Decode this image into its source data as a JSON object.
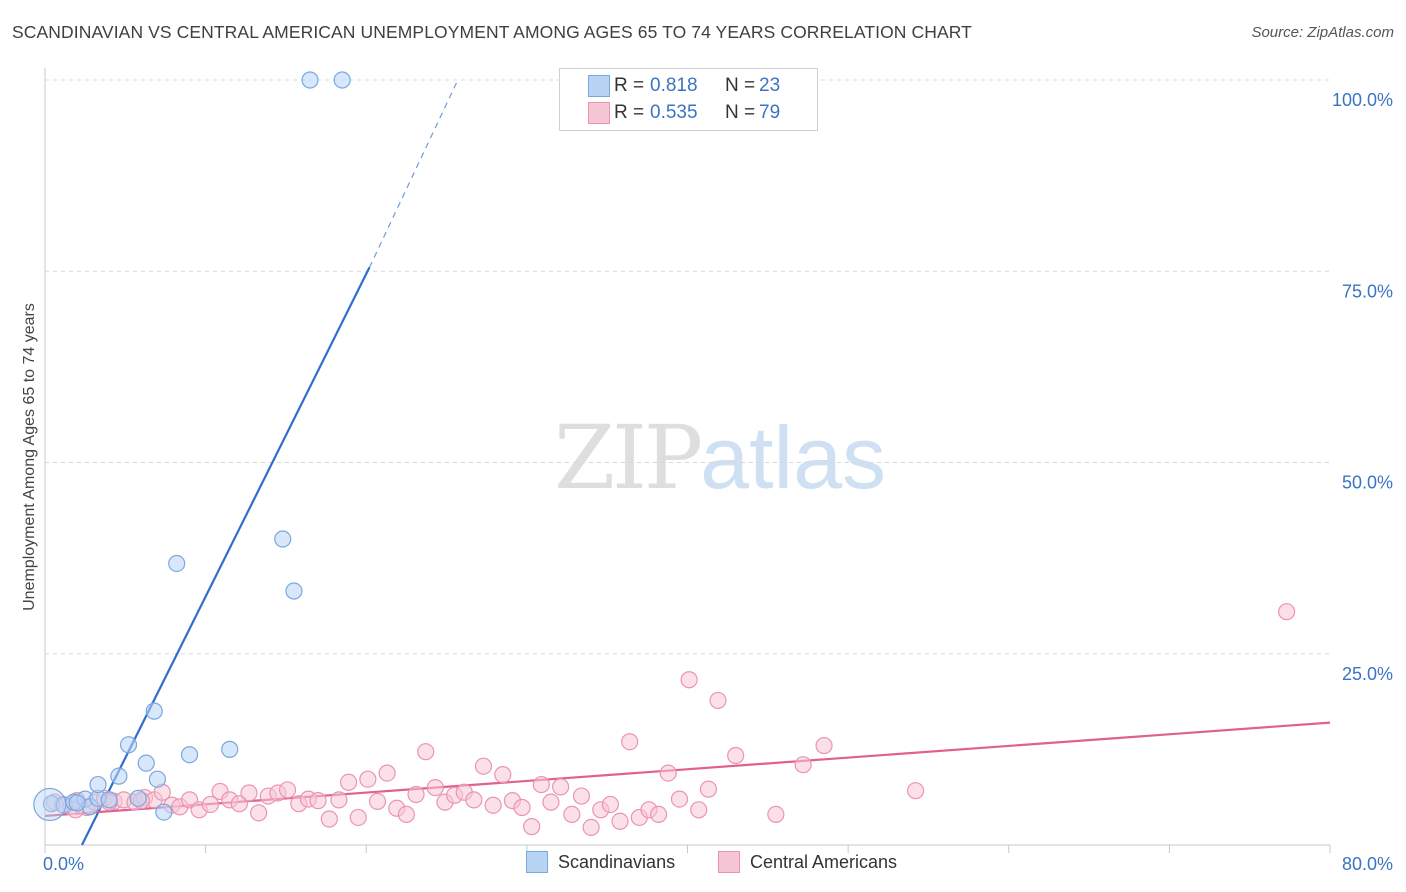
{
  "header": {
    "title": "SCANDINAVIAN VS CENTRAL AMERICAN UNEMPLOYMENT AMONG AGES 65 TO 74 YEARS CORRELATION CHART",
    "source": "Source: ZipAtlas.com"
  },
  "watermark": {
    "zip": "ZIP",
    "atlas": "atlas"
  },
  "legend_top": {
    "rows": [
      {
        "r_label": "R =",
        "r_value": "0.818",
        "n_label": "N =",
        "n_value": "23"
      },
      {
        "r_label": "R =",
        "r_value": "0.535",
        "n_label": "N =",
        "n_value": "79"
      }
    ]
  },
  "legend_bottom": [
    "Scandinavians",
    "Central Americans"
  ],
  "colors": {
    "blue_fill": "#b8d4f5",
    "blue_stroke": "#7aa7de",
    "blue_line": "#2f6fcb",
    "pink_fill": "#f7c6d6",
    "pink_stroke": "#eb94b1",
    "pink_line": "#e0608e",
    "tick_label": "#3b74c4",
    "grid": "#d8d8d8"
  },
  "chart_data": {
    "type": "scatter",
    "title": "SCANDINAVIAN VS CENTRAL AMERICAN UNEMPLOYMENT AMONG AGES 65 TO 74 YEARS CORRELATION CHART",
    "xlabel": "",
    "ylabel": "Unemployment Among Ages 65 to 74 years",
    "xlim": [
      0,
      80
    ],
    "ylim": [
      0,
      100
    ],
    "x_tick_labels": [
      "0.0%",
      "80.0%"
    ],
    "y_tick_values": [
      25,
      50,
      75,
      100
    ],
    "y_tick_labels": [
      "25.0%",
      "50.0%",
      "75.0%",
      "100.0%"
    ],
    "grid": true,
    "legend_position": "bottom",
    "series": [
      {
        "name": "Scandinavians",
        "R": 0.818,
        "N": 23,
        "trend": {
          "x": [
            2.3,
            20.2
          ],
          "y": [
            0,
            75.5
          ],
          "dashed_to": [
            25.7,
            100
          ]
        },
        "points": [
          [
            0.4,
            5.4
          ],
          [
            1.2,
            5.2
          ],
          [
            1.8,
            5.6
          ],
          [
            2.5,
            6.0
          ],
          [
            2.8,
            5.0
          ],
          [
            3.3,
            6.1
          ],
          [
            4.0,
            5.9
          ],
          [
            3.3,
            7.9
          ],
          [
            4.6,
            9.0
          ],
          [
            5.2,
            13.1
          ],
          [
            5.8,
            6.1
          ],
          [
            6.3,
            10.7
          ],
          [
            7.0,
            8.6
          ],
          [
            6.8,
            17.5
          ],
          [
            7.4,
            4.3
          ],
          [
            8.2,
            36.8
          ],
          [
            9.0,
            11.8
          ],
          [
            11.5,
            12.5
          ],
          [
            14.8,
            40.0
          ],
          [
            15.5,
            33.2
          ],
          [
            16.5,
            100.0
          ],
          [
            18.5,
            100.0
          ],
          [
            2.0,
            5.5
          ]
        ]
      },
      {
        "name": "Central Americans",
        "R": 0.535,
        "N": 79,
        "trend": {
          "x": [
            0,
            80
          ],
          "y": [
            3.8,
            16.0
          ]
        },
        "points": [
          [
            0.6,
            5.6
          ],
          [
            1.1,
            5.3
          ],
          [
            1.6,
            5.0
          ],
          [
            2.0,
            5.8
          ],
          [
            2.6,
            4.9
          ],
          [
            3.1,
            5.6
          ],
          [
            3.7,
            6.1
          ],
          [
            4.3,
            5.7
          ],
          [
            4.9,
            5.9
          ],
          [
            5.6,
            5.6
          ],
          [
            6.2,
            6.2
          ],
          [
            6.8,
            5.9
          ],
          [
            7.3,
            6.9
          ],
          [
            7.9,
            5.2
          ],
          [
            8.4,
            5.0
          ],
          [
            9.0,
            5.9
          ],
          [
            9.6,
            4.6
          ],
          [
            10.3,
            5.3
          ],
          [
            10.9,
            7.0
          ],
          [
            11.5,
            5.9
          ],
          [
            12.1,
            5.4
          ],
          [
            12.7,
            6.8
          ],
          [
            13.3,
            4.2
          ],
          [
            13.9,
            6.4
          ],
          [
            14.5,
            6.8
          ],
          [
            15.1,
            7.2
          ],
          [
            15.8,
            5.4
          ],
          [
            16.4,
            6.0
          ],
          [
            17.0,
            5.8
          ],
          [
            17.7,
            3.4
          ],
          [
            18.3,
            5.9
          ],
          [
            18.9,
            8.2
          ],
          [
            19.5,
            3.6
          ],
          [
            20.1,
            8.6
          ],
          [
            20.7,
            5.7
          ],
          [
            21.3,
            9.4
          ],
          [
            21.9,
            4.8
          ],
          [
            22.5,
            4.0
          ],
          [
            23.1,
            6.6
          ],
          [
            23.7,
            12.2
          ],
          [
            24.3,
            7.5
          ],
          [
            24.9,
            5.6
          ],
          [
            25.5,
            6.5
          ],
          [
            26.1,
            6.9
          ],
          [
            26.7,
            5.9
          ],
          [
            27.3,
            10.3
          ],
          [
            27.9,
            5.2
          ],
          [
            28.5,
            9.2
          ],
          [
            29.1,
            5.8
          ],
          [
            29.7,
            4.9
          ],
          [
            30.3,
            2.4
          ],
          [
            30.9,
            7.9
          ],
          [
            31.5,
            5.6
          ],
          [
            32.1,
            7.6
          ],
          [
            32.8,
            4.0
          ],
          [
            33.4,
            6.4
          ],
          [
            34.0,
            2.3
          ],
          [
            34.6,
            4.6
          ],
          [
            35.2,
            5.3
          ],
          [
            35.8,
            3.1
          ],
          [
            36.4,
            13.5
          ],
          [
            37.0,
            3.6
          ],
          [
            37.6,
            4.6
          ],
          [
            38.2,
            4.0
          ],
          [
            38.8,
            9.4
          ],
          [
            39.5,
            6.0
          ],
          [
            40.1,
            21.6
          ],
          [
            40.7,
            4.6
          ],
          [
            41.3,
            7.3
          ],
          [
            41.9,
            18.9
          ],
          [
            43.0,
            11.7
          ],
          [
            45.5,
            4.0
          ],
          [
            47.2,
            10.5
          ],
          [
            48.5,
            13.0
          ],
          [
            54.2,
            7.1
          ],
          [
            77.3,
            30.5
          ],
          [
            1.9,
            4.6
          ],
          [
            4.0,
            5.6
          ],
          [
            6.0,
            5.8
          ]
        ]
      }
    ]
  }
}
